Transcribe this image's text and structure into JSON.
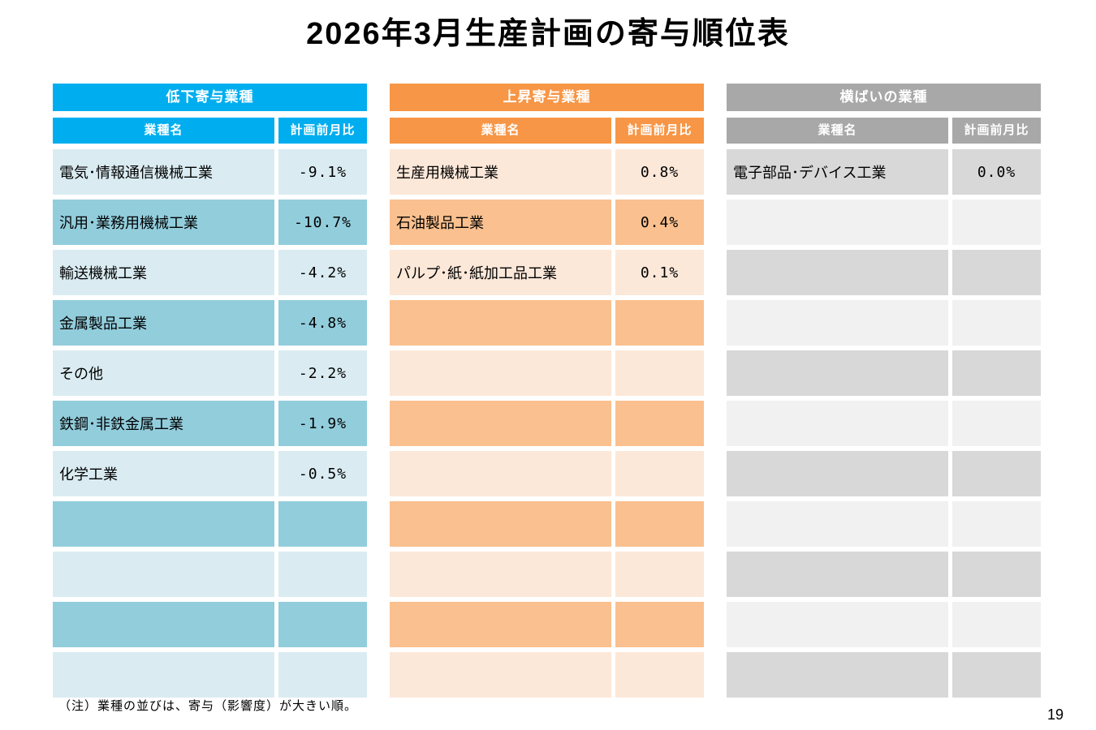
{
  "page": {
    "title": "2026年3月生産計画の寄与順位表",
    "footnote": "（注）業種の並びは、寄与（影響度）が大きい順。",
    "page_number": "19"
  },
  "columns": {
    "industry": "業種名",
    "ratio": "計画前月比"
  },
  "tables": [
    {
      "id": "decline-contribution",
      "header": "低下寄与業種",
      "colors": {
        "header": "#00AEEF",
        "row_light": "#DAECF2",
        "row_dark": "#92CDDC"
      },
      "first_row_shade": "light",
      "rows": [
        {
          "name": "電気･情報通信機械工業",
          "value": "-9.1%"
        },
        {
          "name": "汎用･業務用機械工業",
          "value": "-10.7%"
        },
        {
          "name": "輸送機械工業",
          "value": "-4.2%"
        },
        {
          "name": "金属製品工業",
          "value": "-4.8%"
        },
        {
          "name": "その他",
          "value": "-2.2%"
        },
        {
          "name": "鉄鋼･非鉄金属工業",
          "value": "-1.9%"
        },
        {
          "name": "化学工業",
          "value": "-0.5%"
        },
        {
          "name": "",
          "value": ""
        },
        {
          "name": "",
          "value": ""
        },
        {
          "name": "",
          "value": ""
        },
        {
          "name": "",
          "value": ""
        }
      ]
    },
    {
      "id": "rise-contribution",
      "header": "上昇寄与業種",
      "colors": {
        "header": "#F79646",
        "row_light": "#FCE8D9",
        "row_dark": "#FAC08F"
      },
      "first_row_shade": "light",
      "rows": [
        {
          "name": "生産用機械工業",
          "value": "0.8%"
        },
        {
          "name": "石油製品工業",
          "value": "0.4%"
        },
        {
          "name": "パルプ･紙･紙加工品工業",
          "value": "0.1%"
        },
        {
          "name": "",
          "value": ""
        },
        {
          "name": "",
          "value": ""
        },
        {
          "name": "",
          "value": ""
        },
        {
          "name": "",
          "value": ""
        },
        {
          "name": "",
          "value": ""
        },
        {
          "name": "",
          "value": ""
        },
        {
          "name": "",
          "value": ""
        },
        {
          "name": "",
          "value": ""
        }
      ]
    },
    {
      "id": "flat-industries",
      "header": "横ばいの業種",
      "colors": {
        "header": "#A8A8A8",
        "row_light": "#F1F1F1",
        "row_dark": "#D8D8D8"
      },
      "first_row_shade": "dark",
      "rows": [
        {
          "name": "電子部品･デバイス工業",
          "value": "0.0%"
        },
        {
          "name": "",
          "value": ""
        },
        {
          "name": "",
          "value": ""
        },
        {
          "name": "",
          "value": ""
        },
        {
          "name": "",
          "value": ""
        },
        {
          "name": "",
          "value": ""
        },
        {
          "name": "",
          "value": ""
        },
        {
          "name": "",
          "value": ""
        },
        {
          "name": "",
          "value": ""
        },
        {
          "name": "",
          "value": ""
        },
        {
          "name": "",
          "value": ""
        }
      ]
    }
  ]
}
